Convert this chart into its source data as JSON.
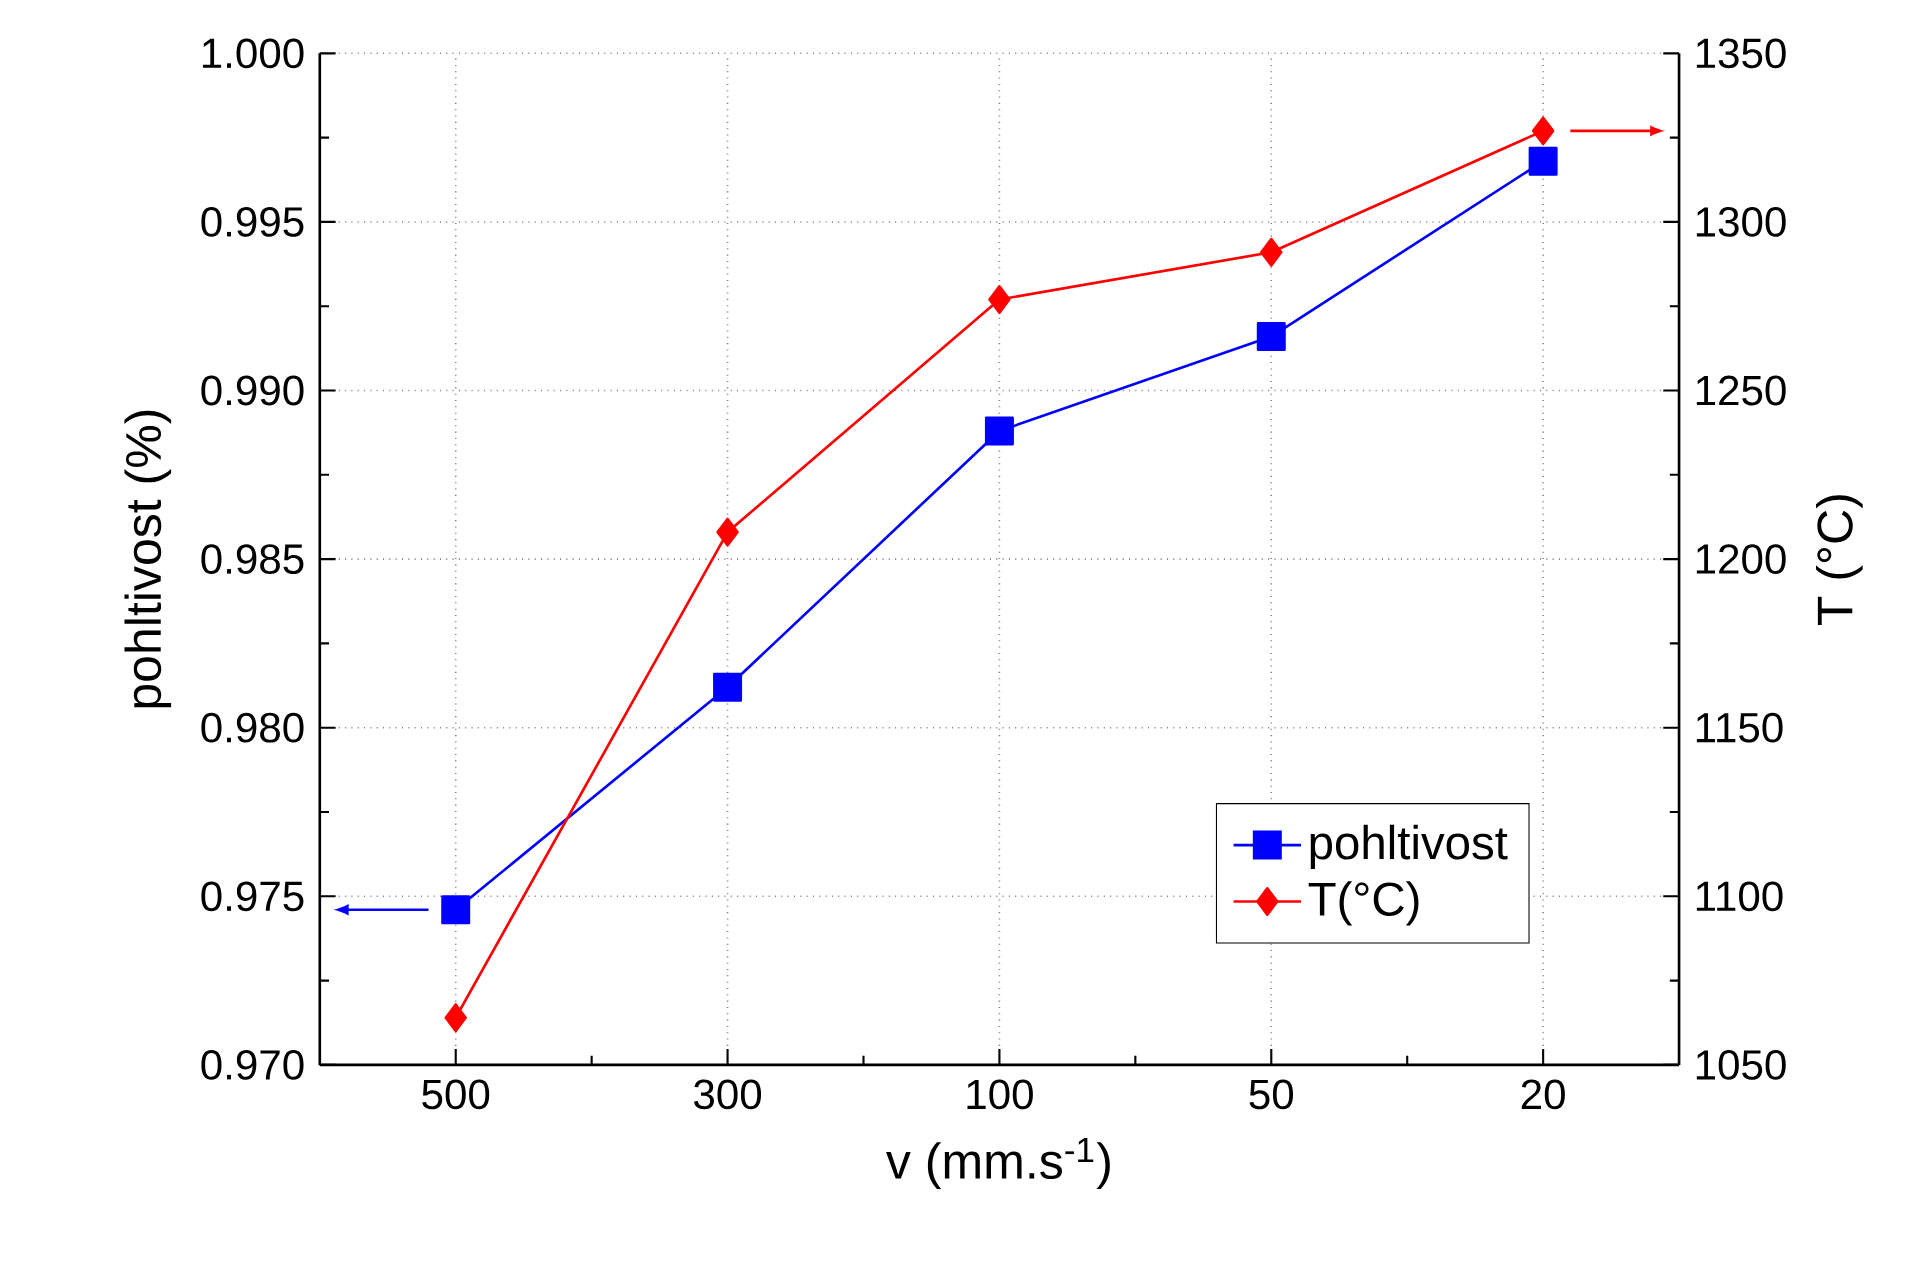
{
  "chart_data": {
    "type": "line",
    "xlabel": "v (mm.s$^{-1}$)",
    "ylabel": "pohltivost (%)",
    "y2label": "T (°C)",
    "categories": [
      "500",
      "300",
      "100",
      "50",
      "20"
    ],
    "series": [
      {
        "name": "pohltivost",
        "color": "#0000ff",
        "marker": "square",
        "values": [
          0.9746,
          0.9812,
          0.9888,
          0.9916,
          0.9968
        ]
      },
      {
        "name": "T(°C)",
        "color": "#ff0000",
        "marker": "diamond",
        "axis": "y2",
        "values": [
          1064,
          1208,
          1277,
          1291,
          1327
        ]
      }
    ],
    "ylim": [
      0.97,
      1.0
    ],
    "yticks": [
      {
        "value": 0.97,
        "label": "0.970"
      },
      {
        "value": 0.975,
        "label": "0.975"
      },
      {
        "value": 0.98,
        "label": "0.980"
      },
      {
        "value": 0.985,
        "label": "0.985"
      },
      {
        "value": 0.99,
        "label": "0.990"
      },
      {
        "value": 0.995,
        "label": "0.995"
      },
      {
        "value": 1.0,
        "label": "1.000"
      }
    ],
    "y2lim": [
      1050,
      1350
    ],
    "y2ticks": [
      1050,
      1100,
      1150,
      1200,
      1250,
      1300,
      1350
    ],
    "grid": true,
    "legend": "bottom right",
    "line_style": "solid"
  }
}
